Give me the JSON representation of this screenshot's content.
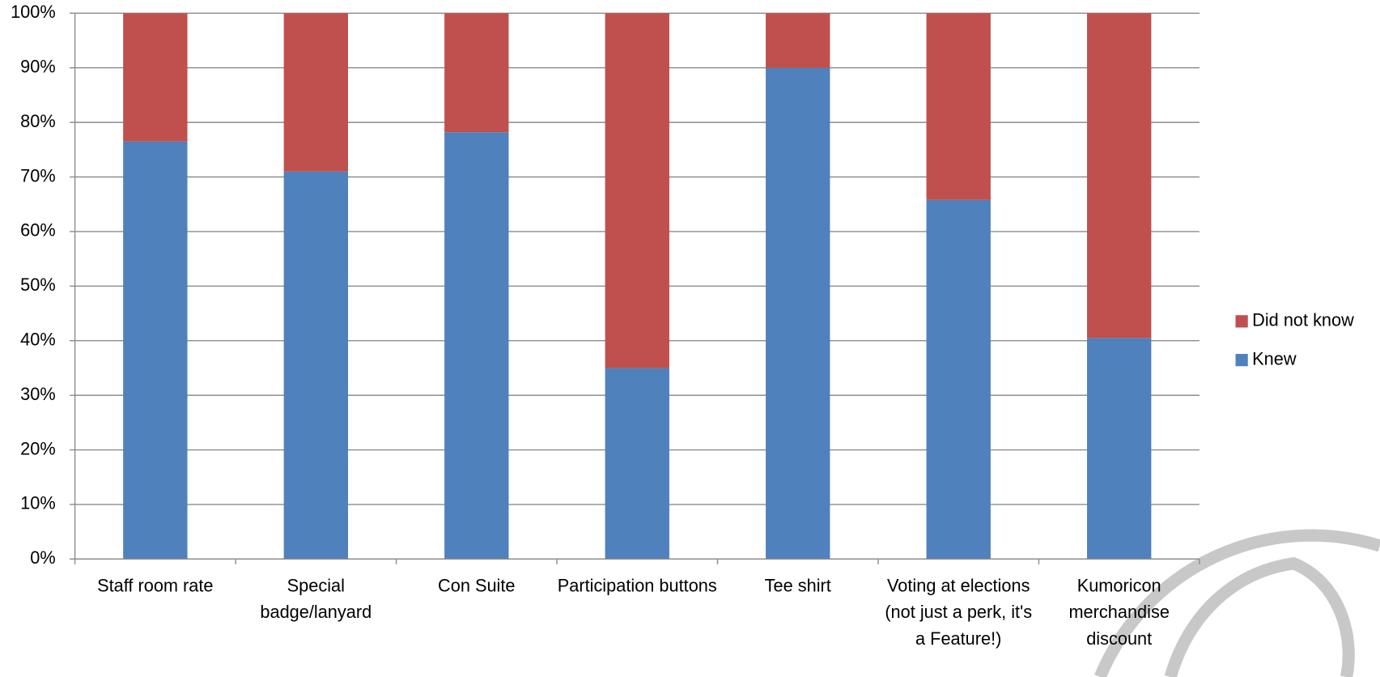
{
  "chart_data": {
    "type": "stacked_bar",
    "categories": [
      "Staff room rate",
      "Special badge/lanyard",
      "Con Suite",
      "Participation buttons",
      "Tee shirt",
      "Voting at elections (not just a perk, it's a Feature!)",
      "Kumoricon merchandise discount"
    ],
    "series": [
      {
        "name": "Knew",
        "color": "#4f81bd",
        "values": [
          76.5,
          71,
          78.2,
          35,
          90,
          65.8,
          40.5
        ]
      },
      {
        "name": "Did not know",
        "color": "#c0504d",
        "values": [
          23.5,
          29,
          21.8,
          65,
          10,
          34.2,
          59.5
        ]
      }
    ],
    "ylim": [
      0,
      100
    ],
    "yticks": [
      {
        "value": 0,
        "label": "0%"
      },
      {
        "value": 10,
        "label": "10%"
      },
      {
        "value": 20,
        "label": "20%"
      },
      {
        "value": 30,
        "label": "30%"
      },
      {
        "value": 40,
        "label": "40%"
      },
      {
        "value": 50,
        "label": "50%"
      },
      {
        "value": 60,
        "label": "60%"
      },
      {
        "value": 70,
        "label": "70%"
      },
      {
        "value": 80,
        "label": "80%"
      },
      {
        "value": 90,
        "label": "90%"
      },
      {
        "value": 100,
        "label": "100%"
      }
    ],
    "grid": true,
    "legend": "right"
  }
}
